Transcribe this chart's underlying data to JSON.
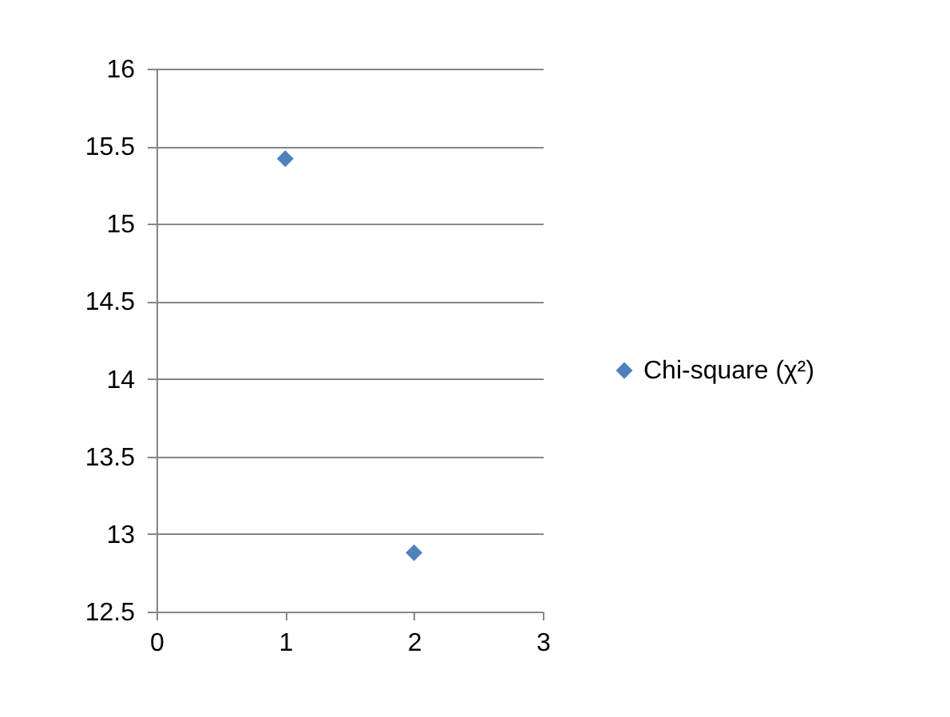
{
  "chart_data": {
    "type": "scatter",
    "x": [
      1,
      2
    ],
    "series": [
      {
        "name": "Chi-square (χ²)",
        "color": "#4f81bd",
        "values": [
          15.42,
          12.88
        ]
      }
    ],
    "xlim": [
      0,
      3
    ],
    "xticks": [
      0,
      1,
      2,
      3
    ],
    "ylim": [
      12.5,
      16
    ],
    "yticks": [
      12.5,
      13,
      13.5,
      14,
      14.5,
      15,
      15.5,
      16
    ],
    "grid": "y",
    "legend": "right",
    "marker": "diamond"
  }
}
